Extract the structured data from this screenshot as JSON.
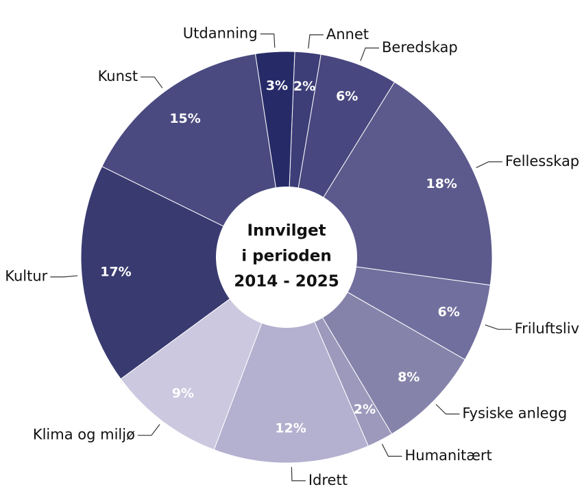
{
  "chart_data": {
    "type": "donut",
    "center_label": [
      "Innvilget",
      "i perioden",
      "2014 - 2025"
    ],
    "categories": [
      "Annet",
      "Beredskap",
      "Fellesskap",
      "Friluftsliv",
      "Fysiske anlegg",
      "Humanitært",
      "Idrett",
      "Klima og miljø",
      "Kultur",
      "Kunst",
      "Utdanning"
    ],
    "values": [
      2,
      6,
      18,
      6,
      8,
      2,
      12,
      9,
      17,
      15,
      3
    ],
    "value_labels": [
      "2%",
      "6%",
      "18%",
      "6%",
      "8%",
      "2%",
      "12%",
      "9%",
      "17%",
      "15%",
      "3%"
    ],
    "colors": [
      "#3d3d78",
      "#48477f",
      "#5c5a8c",
      "#716f9e",
      "#8683ab",
      "#9d99bc",
      "#b4b0cf",
      "#cbc8df",
      "#393a70",
      "#4a4a80",
      "#262b68"
    ]
  }
}
